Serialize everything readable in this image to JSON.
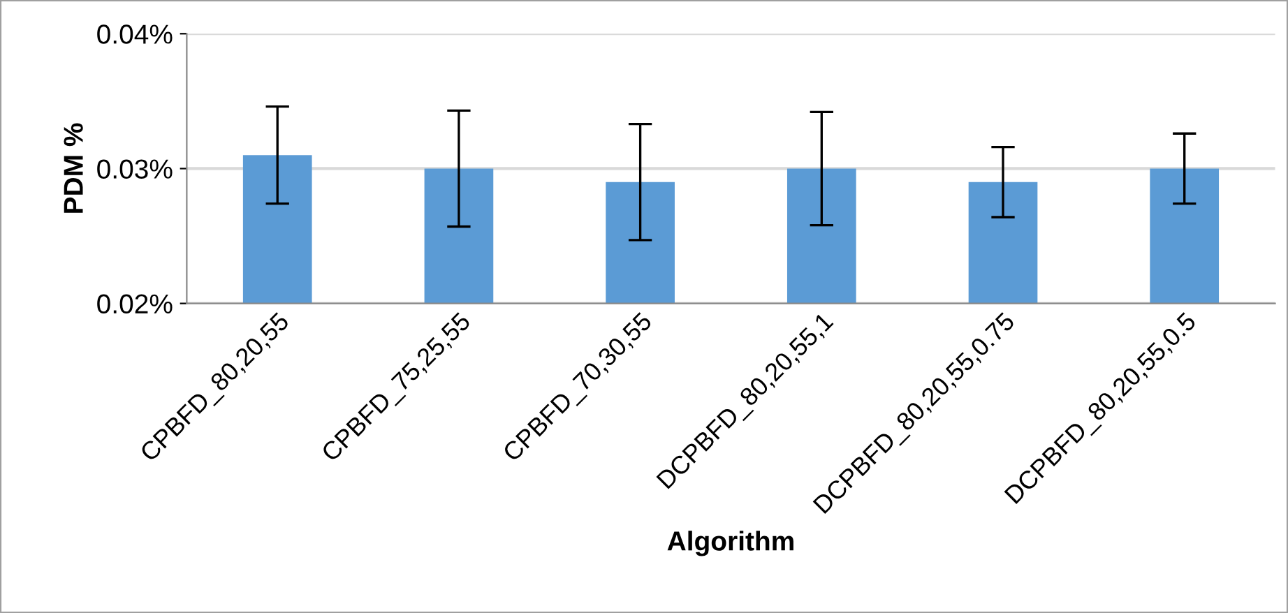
{
  "chart_data": {
    "type": "bar",
    "xlabel": "Algorithm",
    "ylabel": "PDM %",
    "categories": [
      "CPBFD_80,20,55",
      "CPBFD_75,25,55",
      "CPBFD_70,30,55",
      "DCPBFD_80,20,55,1",
      "DCPBFD_80,20,55,0.75",
      "DCPBFD_80,20,55,0.5"
    ],
    "values": [
      0.031,
      0.03,
      0.029,
      0.03,
      0.029,
      0.03
    ],
    "errors": [
      0.0036,
      0.0043,
      0.0043,
      0.0042,
      0.0026,
      0.0026
    ],
    "color": "#5b9bd5",
    "ylim": [
      0.02,
      0.04
    ],
    "yticks": [
      {
        "value": 0.02,
        "label": "0.02%"
      },
      {
        "value": 0.03,
        "label": "0.03%"
      },
      {
        "value": 0.04,
        "label": "0.04%"
      }
    ],
    "grid": "y",
    "legend": false
  }
}
